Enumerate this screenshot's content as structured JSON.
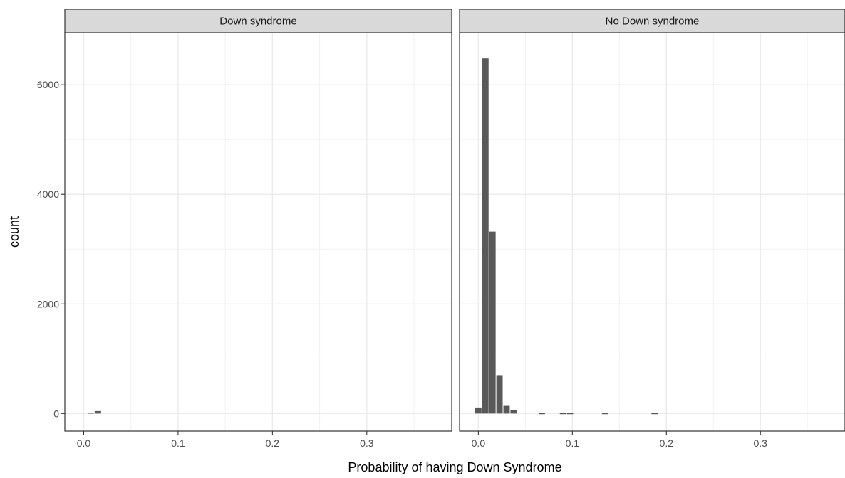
{
  "chart_data": {
    "type": "bar",
    "subtype": "faceted-histogram",
    "xlabel": "Probability of having Down Syndrome",
    "ylabel": "count",
    "xlim": [
      -0.02,
      0.39
    ],
    "ylim": [
      -320,
      6950
    ],
    "x_ticks": [
      0.0,
      0.1,
      0.2,
      0.3
    ],
    "x_tick_labels": [
      "0.0",
      "0.1",
      "0.2",
      "0.3"
    ],
    "y_ticks": [
      0,
      2000,
      4000,
      6000
    ],
    "y_tick_labels": [
      "0",
      "2000",
      "4000",
      "6000"
    ],
    "grid": true,
    "bin_width": 0.0075,
    "colors": {
      "bar": "#595959",
      "strip": "#d9d9d9",
      "grid": "#ebebeb",
      "border": "#333333"
    },
    "facets": [
      {
        "label": "Down syndrome",
        "bins": [
          {
            "x": 0.0075,
            "count": 18
          },
          {
            "x": 0.015,
            "count": 45
          }
        ]
      },
      {
        "label": "No Down syndrome",
        "bins": [
          {
            "x": 0.0,
            "count": 110
          },
          {
            "x": 0.0075,
            "count": 6480
          },
          {
            "x": 0.015,
            "count": 3320
          },
          {
            "x": 0.0225,
            "count": 700
          },
          {
            "x": 0.03,
            "count": 140
          },
          {
            "x": 0.0375,
            "count": 70
          },
          {
            "x": 0.0675,
            "count": 8
          },
          {
            "x": 0.09,
            "count": 8
          },
          {
            "x": 0.0975,
            "count": 8
          },
          {
            "x": 0.135,
            "count": 8
          },
          {
            "x": 0.1875,
            "count": 8
          }
        ]
      }
    ]
  }
}
